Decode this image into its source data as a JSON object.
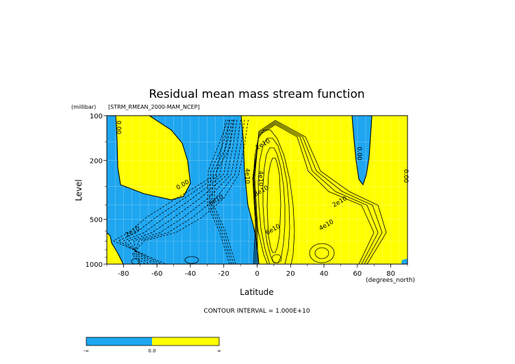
{
  "chart_data": {
    "type": "contour",
    "title": "Residual mean mass stream function",
    "subtitle": "[STRM_RMEAN_2000-MAM_NCEP]",
    "xlabel": "Latitude",
    "x_units": "(degrees_north)",
    "ylabel": "Level",
    "y_units": "(millibar)",
    "xlim": [
      -90,
      90
    ],
    "ylim": [
      1000,
      100
    ],
    "y_scale": "log",
    "x_ticks": [
      -80,
      -60,
      -40,
      -20,
      0,
      20,
      40,
      60,
      80
    ],
    "x_tick_labels": [
      "-80",
      "-60",
      "-40",
      "-20",
      "0",
      "20",
      "40",
      "60",
      "80"
    ],
    "y_ticks": [
      100,
      200,
      500,
      1000
    ],
    "y_tick_labels": [
      "100",
      "200",
      "500",
      "1000"
    ],
    "grid": true,
    "contour_interval_text": "CONTOUR INTERVAL = 1.000E+10",
    "fill_colors": {
      "negative": "#1ea6f0",
      "positive": "#ffff00"
    },
    "colorbar": {
      "labels": [
        "-∞",
        "0.0",
        "∞"
      ]
    },
    "contour_labels": [
      {
        "text": "0.00",
        "lat": -84,
        "p": 120
      },
      {
        "text": "0.00",
        "lat": -44,
        "p": 300
      },
      {
        "text": "0.00",
        "lat": 60,
        "p": 180
      },
      {
        "text": "0.00",
        "lat": 88,
        "p": 255
      },
      {
        "text": "2e10",
        "lat": 4,
        "p": 160
      },
      {
        "text": "2e10",
        "lat": 50,
        "p": 390
      },
      {
        "text": "2e10",
        "lat": -74,
        "p": 620
      },
      {
        "text": "4e10",
        "lat": -7,
        "p": 255
      },
      {
        "text": "4e10",
        "lat": 1,
        "p": 265
      },
      {
        "text": "4e10",
        "lat": 42,
        "p": 560
      },
      {
        "text": "6e10",
        "lat": -24,
        "p": 380
      },
      {
        "text": "6e10",
        "lat": 10,
        "p": 600
      },
      {
        "text": "8e10",
        "lat": 3,
        "p": 330
      }
    ]
  }
}
